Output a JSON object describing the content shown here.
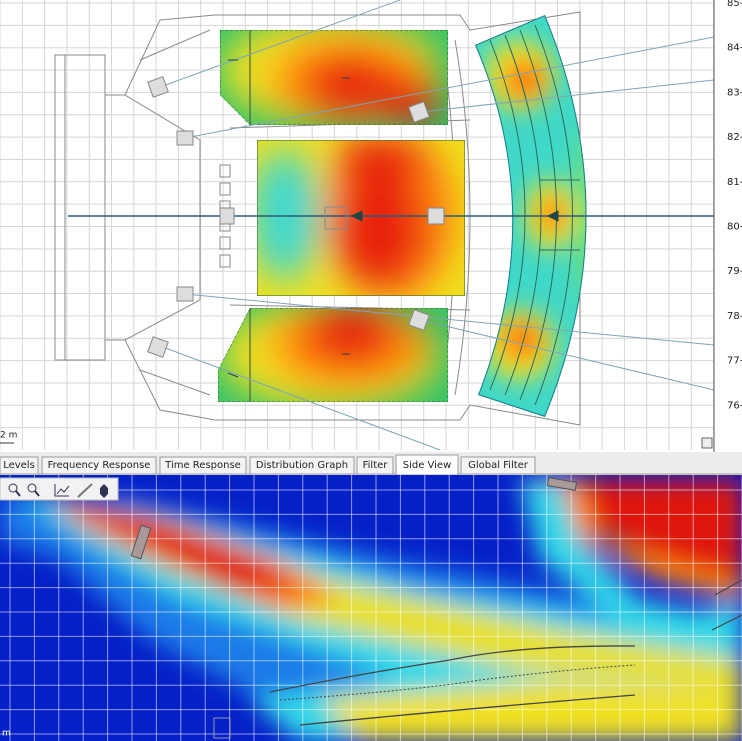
{
  "plan_view": {
    "scale_labels": [
      "85-",
      "84-",
      "83-",
      "82-",
      "81-",
      "80-",
      "79-",
      "78-",
      "77-",
      "76-"
    ],
    "scale_unit": "2 m"
  },
  "tabs": [
    "Levels",
    "Frequency Response",
    "Time Response",
    "Distribution Graph",
    "Filter",
    "Side View",
    "Global Filter"
  ],
  "active_tab": "Side View",
  "side_view": {
    "scale_unit": "m"
  }
}
